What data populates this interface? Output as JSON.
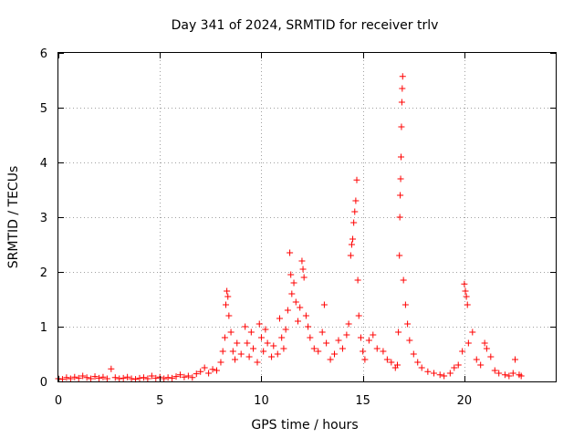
{
  "chart_data": {
    "type": "scatter",
    "title": "Day 341 of 2024, SRMTID for receiver trlv",
    "xlabel": "GPS time / hours",
    "ylabel": "SRMTID / TECUs",
    "xlim": [
      0,
      24.5
    ],
    "ylim": [
      0,
      6
    ],
    "xticks": [
      0,
      5,
      10,
      15,
      20
    ],
    "yticks": [
      0,
      1,
      2,
      3,
      4,
      5,
      6
    ],
    "grid": true,
    "marker": "+",
    "colors": {
      "series": "#ff0000",
      "axis": "#000000",
      "grid": "#a0a0a0"
    },
    "series": [
      {
        "name": "SRMTID",
        "points": [
          [
            0.0,
            0.05
          ],
          [
            0.2,
            0.04
          ],
          [
            0.4,
            0.07
          ],
          [
            0.6,
            0.05
          ],
          [
            0.8,
            0.08
          ],
          [
            1.0,
            0.06
          ],
          [
            1.2,
            0.1
          ],
          [
            1.4,
            0.07
          ],
          [
            1.6,
            0.05
          ],
          [
            1.8,
            0.09
          ],
          [
            2.0,
            0.06
          ],
          [
            2.2,
            0.08
          ],
          [
            2.4,
            0.05
          ],
          [
            2.6,
            0.23
          ],
          [
            2.8,
            0.07
          ],
          [
            3.0,
            0.05
          ],
          [
            3.2,
            0.06
          ],
          [
            3.4,
            0.08
          ],
          [
            3.6,
            0.05
          ],
          [
            3.8,
            0.04
          ],
          [
            4.0,
            0.06
          ],
          [
            4.2,
            0.07
          ],
          [
            4.4,
            0.05
          ],
          [
            4.6,
            0.1
          ],
          [
            4.8,
            0.06
          ],
          [
            5.0,
            0.08
          ],
          [
            5.2,
            0.05
          ],
          [
            5.4,
            0.07
          ],
          [
            5.6,
            0.06
          ],
          [
            5.8,
            0.09
          ],
          [
            6.0,
            0.12
          ],
          [
            6.2,
            0.08
          ],
          [
            6.4,
            0.1
          ],
          [
            6.6,
            0.07
          ],
          [
            6.8,
            0.14
          ],
          [
            7.0,
            0.18
          ],
          [
            7.2,
            0.25
          ],
          [
            7.4,
            0.15
          ],
          [
            7.6,
            0.22
          ],
          [
            7.8,
            0.2
          ],
          [
            8.0,
            0.35
          ],
          [
            8.1,
            0.55
          ],
          [
            8.2,
            0.8
          ],
          [
            8.25,
            1.4
          ],
          [
            8.3,
            1.65
          ],
          [
            8.35,
            1.55
          ],
          [
            8.4,
            1.2
          ],
          [
            8.5,
            0.9
          ],
          [
            8.6,
            0.55
          ],
          [
            8.7,
            0.4
          ],
          [
            8.8,
            0.7
          ],
          [
            9.0,
            0.5
          ],
          [
            9.2,
            1.0
          ],
          [
            9.3,
            0.7
          ],
          [
            9.4,
            0.45
          ],
          [
            9.5,
            0.9
          ],
          [
            9.6,
            0.6
          ],
          [
            9.8,
            0.35
          ],
          [
            9.9,
            1.05
          ],
          [
            10.0,
            0.8
          ],
          [
            10.1,
            0.55
          ],
          [
            10.2,
            0.95
          ],
          [
            10.3,
            0.7
          ],
          [
            10.5,
            0.45
          ],
          [
            10.6,
            0.65
          ],
          [
            10.8,
            0.5
          ],
          [
            10.9,
            1.15
          ],
          [
            11.0,
            0.8
          ],
          [
            11.1,
            0.6
          ],
          [
            11.2,
            0.95
          ],
          [
            11.3,
            1.3
          ],
          [
            11.4,
            2.35
          ],
          [
            11.45,
            1.95
          ],
          [
            11.5,
            1.6
          ],
          [
            11.6,
            1.8
          ],
          [
            11.7,
            1.45
          ],
          [
            11.8,
            1.1
          ],
          [
            11.9,
            1.35
          ],
          [
            12.0,
            2.2
          ],
          [
            12.05,
            2.05
          ],
          [
            12.1,
            1.9
          ],
          [
            12.2,
            1.2
          ],
          [
            12.3,
            1.0
          ],
          [
            12.4,
            0.8
          ],
          [
            12.6,
            0.6
          ],
          [
            12.8,
            0.55
          ],
          [
            13.0,
            0.9
          ],
          [
            13.1,
            1.4
          ],
          [
            13.2,
            0.7
          ],
          [
            13.4,
            0.4
          ],
          [
            13.6,
            0.5
          ],
          [
            13.8,
            0.75
          ],
          [
            14.0,
            0.6
          ],
          [
            14.2,
            0.85
          ],
          [
            14.3,
            1.05
          ],
          [
            14.4,
            2.3
          ],
          [
            14.45,
            2.5
          ],
          [
            14.5,
            2.6
          ],
          [
            14.55,
            2.9
          ],
          [
            14.6,
            3.1
          ],
          [
            14.65,
            3.3
          ],
          [
            14.7,
            3.68
          ],
          [
            14.75,
            1.85
          ],
          [
            14.8,
            1.2
          ],
          [
            14.9,
            0.8
          ],
          [
            15.0,
            0.55
          ],
          [
            15.1,
            0.4
          ],
          [
            15.3,
            0.75
          ],
          [
            15.5,
            0.85
          ],
          [
            15.7,
            0.6
          ],
          [
            16.0,
            0.55
          ],
          [
            16.2,
            0.4
          ],
          [
            16.4,
            0.35
          ],
          [
            16.6,
            0.25
          ],
          [
            16.7,
            0.3
          ],
          [
            16.75,
            0.9
          ],
          [
            16.8,
            2.3
          ],
          [
            16.82,
            3.0
          ],
          [
            16.84,
            3.4
          ],
          [
            16.86,
            3.7
          ],
          [
            16.88,
            4.1
          ],
          [
            16.9,
            4.65
          ],
          [
            16.92,
            5.1
          ],
          [
            16.94,
            5.35
          ],
          [
            16.96,
            5.57
          ],
          [
            17.0,
            1.85
          ],
          [
            17.1,
            1.4
          ],
          [
            17.2,
            1.05
          ],
          [
            17.3,
            0.75
          ],
          [
            17.5,
            0.5
          ],
          [
            17.7,
            0.35
          ],
          [
            17.9,
            0.25
          ],
          [
            18.2,
            0.18
          ],
          [
            18.5,
            0.15
          ],
          [
            18.8,
            0.12
          ],
          [
            19.0,
            0.1
          ],
          [
            19.3,
            0.15
          ],
          [
            19.5,
            0.25
          ],
          [
            19.7,
            0.3
          ],
          [
            19.9,
            0.55
          ],
          [
            20.0,
            1.78
          ],
          [
            20.05,
            1.65
          ],
          [
            20.1,
            1.55
          ],
          [
            20.15,
            1.4
          ],
          [
            20.2,
            0.7
          ],
          [
            20.4,
            0.9
          ],
          [
            20.6,
            0.4
          ],
          [
            20.8,
            0.3
          ],
          [
            21.0,
            0.7
          ],
          [
            21.1,
            0.6
          ],
          [
            21.3,
            0.45
          ],
          [
            21.5,
            0.2
          ],
          [
            21.7,
            0.15
          ],
          [
            22.0,
            0.12
          ],
          [
            22.2,
            0.1
          ],
          [
            22.4,
            0.15
          ],
          [
            22.5,
            0.4
          ],
          [
            22.7,
            0.12
          ],
          [
            22.8,
            0.1
          ]
        ]
      }
    ]
  }
}
